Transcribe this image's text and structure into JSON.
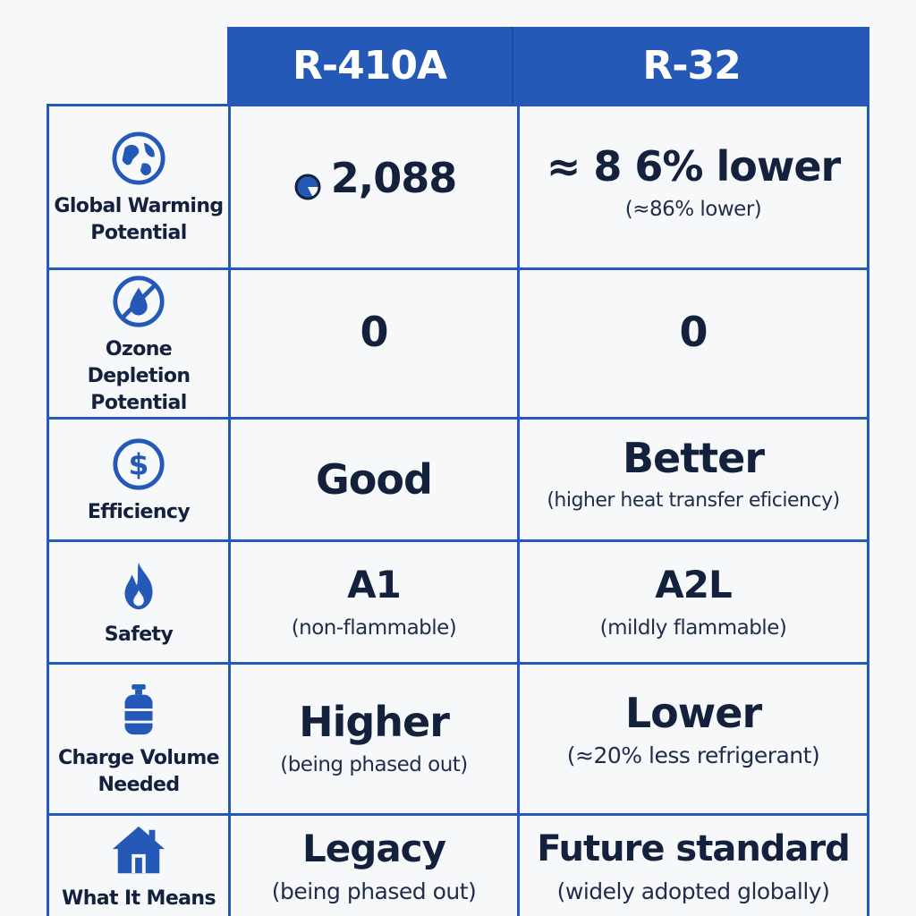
{
  "header": {
    "col1": "R-410A",
    "col2": "R-32"
  },
  "rows": [
    {
      "label_line1": "Global Warming",
      "label_line2": "Potential",
      "icon": "globe-icon",
      "r410a_main": "2,088",
      "r410a_sub": "",
      "r32_main": "≈ 8 6% lower",
      "r32_sub": "(≈86% lower)"
    },
    {
      "label_line1": "Ozone Depletion",
      "label_line2": "Potential",
      "icon": "no-ozone-icon",
      "r410a_main": "0",
      "r410a_sub": "",
      "r32_main": "0",
      "r32_sub": ""
    },
    {
      "label_line1": "Efficiency",
      "label_line2": "",
      "icon": "dollar-icon",
      "r410a_main": "Good",
      "r410a_sub": "",
      "r32_main": "Better",
      "r32_sub": "(higher heat transfer eficiency)"
    },
    {
      "label_line1": "Safety",
      "label_line2": "",
      "icon": "flame-icon",
      "r410a_main": "A1",
      "r410a_sub": "(non-flammable)",
      "r32_main": "A2L",
      "r32_sub": "(mildly flammable)"
    },
    {
      "label_line1": "Charge Volume",
      "label_line2": "Needed",
      "icon": "gas-cylinder-icon",
      "r410a_main": "Higher",
      "r410a_sub": "(being phased out)",
      "r32_main": "Lower",
      "r32_sub": "(≈20% less refrigerant)"
    },
    {
      "label_line1": "What It Means",
      "label_line2": "",
      "icon": "house-icon",
      "r410a_main": "Legacy",
      "r410a_sub": "(being phased out)",
      "r32_main": "Future standard",
      "r32_sub": "(widely adopted globally)"
    }
  ],
  "colors": {
    "accent": "#2559b8",
    "text": "#14213d",
    "background": "#f7f8fa"
  }
}
